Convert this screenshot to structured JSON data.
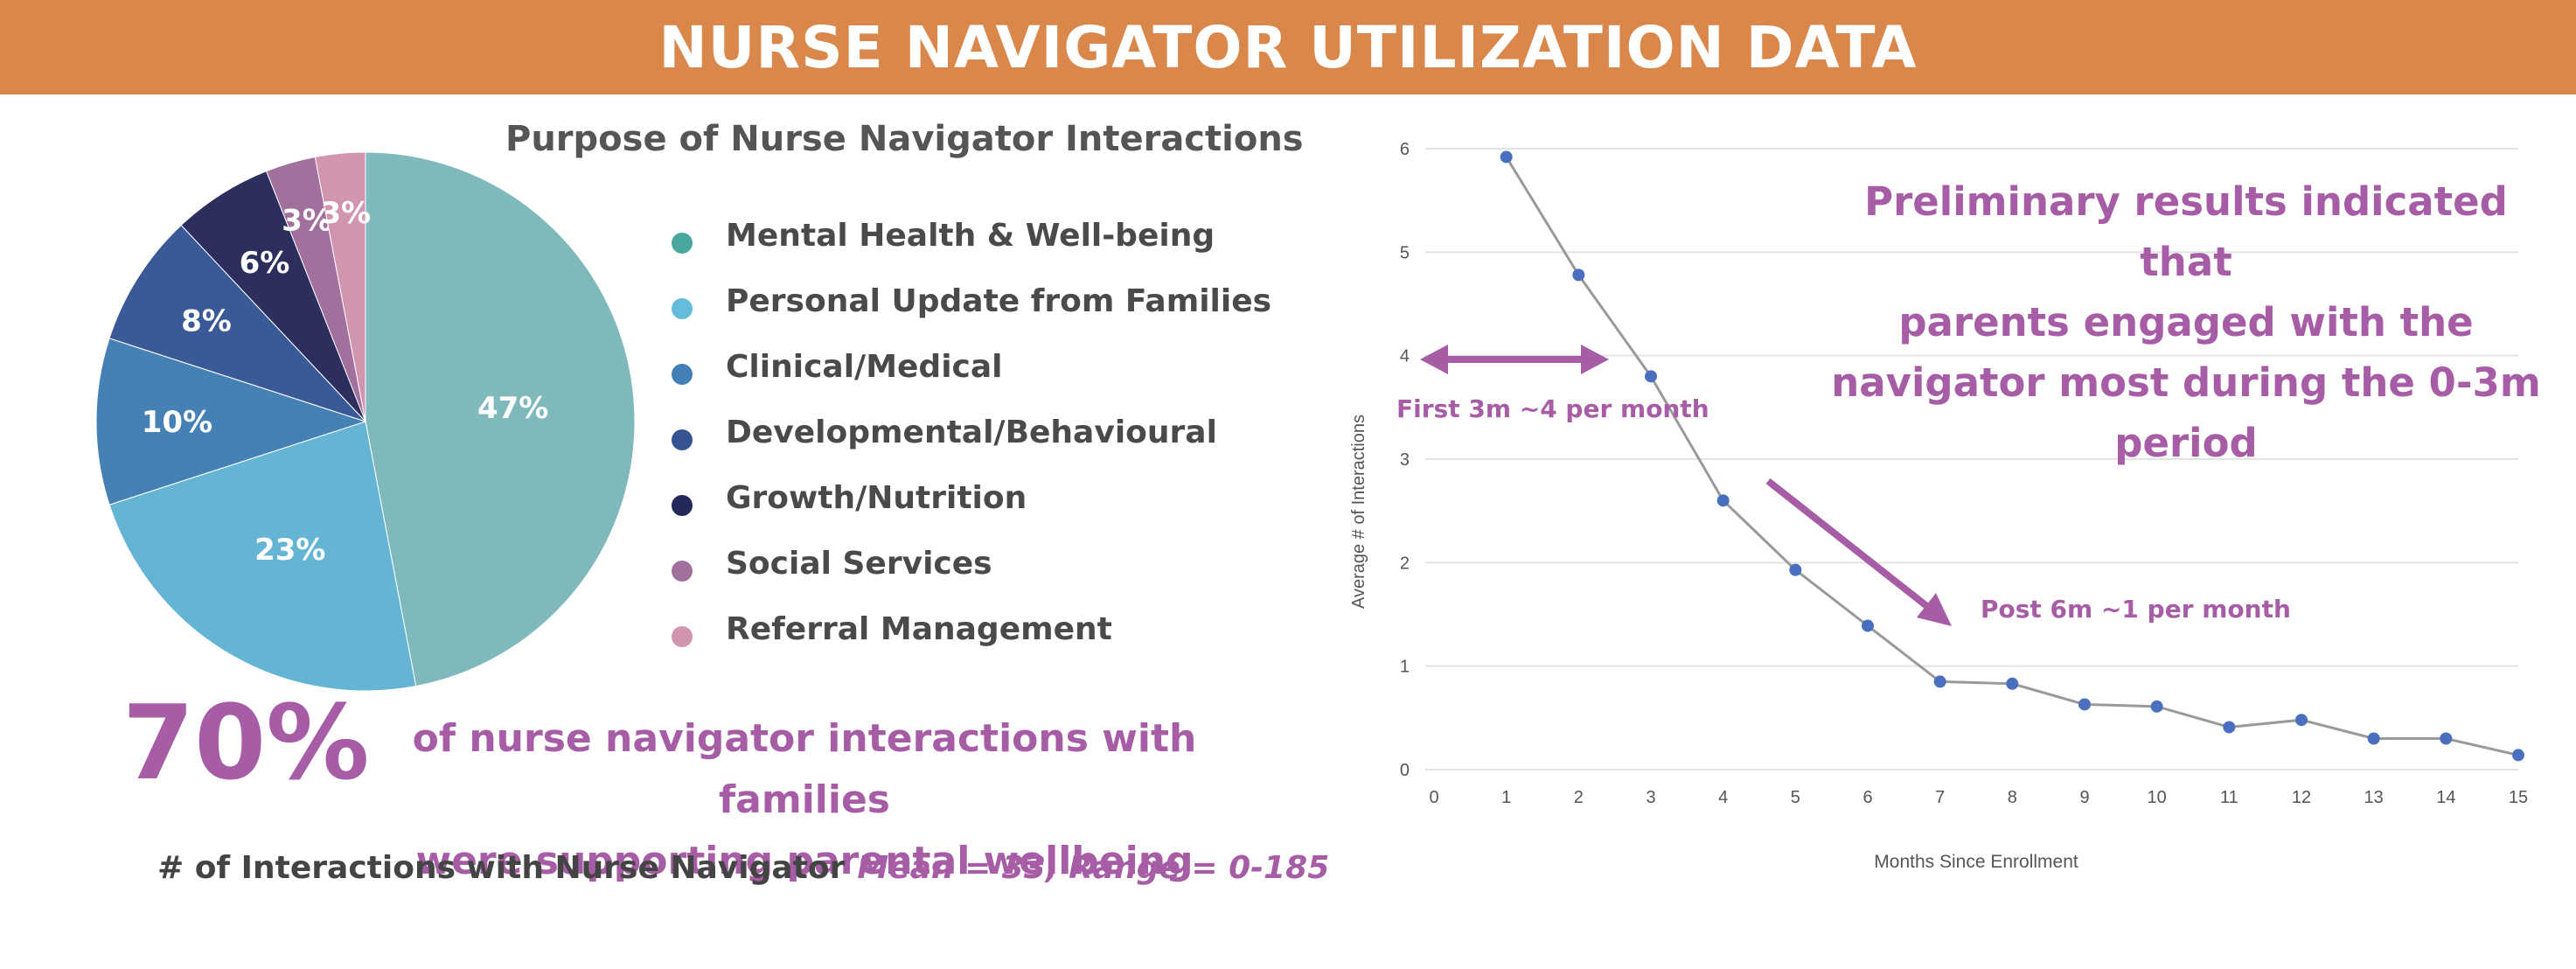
{
  "banner": {
    "title": "NURSE NAVIGATOR UTILIZATION DATA"
  },
  "colors": {
    "banner": "#d9874b",
    "accent_purple": "#a65da6",
    "series_line": "#9a9a9a",
    "series_point": "#4a6fbf"
  },
  "summary": {
    "big_percent": "70%",
    "statement_line1": "of nurse navigator interactions with families",
    "statement_line2": "were supporting parental wellbeing",
    "interactions_label": "# of Interactions with Nurse Navigator",
    "interactions_stats": "Mean = 33, Range = 0-185"
  },
  "line_note": {
    "line1": "Preliminary results indicated that",
    "line2": "parents engaged with the",
    "line3": "navigator most during the 0-3m",
    "line4": "period"
  },
  "chart_data": [
    {
      "type": "pie",
      "title": "Purpose of Nurse Navigator Interactions",
      "slices": [
        {
          "label": "Mental Health & Well-being",
          "value": 47,
          "display": "47%",
          "color": "#80b9bb"
        },
        {
          "label": "Personal Update from Families",
          "value": 23,
          "display": "23%",
          "color": "#64b4d4"
        },
        {
          "label": "Clinical/Medical",
          "value": 10,
          "display": "10%",
          "color": "#4681b5"
        },
        {
          "label": "Developmental/Behavioural",
          "value": 8,
          "display": "8%",
          "color": "#3a5a97"
        },
        {
          "label": "Growth/Nutrition",
          "value": 6,
          "display": "6%",
          "color": "#2c2f5e"
        },
        {
          "label": "Social Services",
          "value": 3,
          "display": "3%",
          "color": "#a1709d"
        },
        {
          "label": "Referral Management",
          "value": 3,
          "display": "3%",
          "color": "#d295b0"
        }
      ],
      "legend_position": "right",
      "legend_dot_colors": [
        "#49a79d",
        "#63bcd9",
        "#4380b5",
        "#355491",
        "#232a59",
        "#a1709d",
        "#d295b0"
      ]
    },
    {
      "type": "line",
      "xlabel": "Months Since Enrollment",
      "ylabel": "Average # of Interactions",
      "xlim": [
        0,
        15
      ],
      "ylim": [
        0,
        6
      ],
      "x_ticks": [
        0,
        1,
        2,
        3,
        4,
        5,
        6,
        7,
        8,
        9,
        10,
        11,
        12,
        13,
        14,
        15
      ],
      "y_ticks": [
        0,
        1,
        2,
        3,
        4,
        5,
        6
      ],
      "grid": "horizontal",
      "x": [
        1,
        2,
        3,
        4,
        5,
        6,
        7,
        8,
        9,
        10,
        11,
        12,
        13,
        14,
        15
      ],
      "y": [
        5.92,
        4.78,
        3.8,
        2.6,
        1.93,
        1.39,
        0.85,
        0.83,
        0.63,
        0.61,
        0.41,
        0.48,
        0.3,
        0.3,
        0.14
      ],
      "annotations": [
        {
          "text": "First 3m ~4 per month"
        },
        {
          "text": "Post 6m ~1 per month"
        }
      ]
    }
  ]
}
